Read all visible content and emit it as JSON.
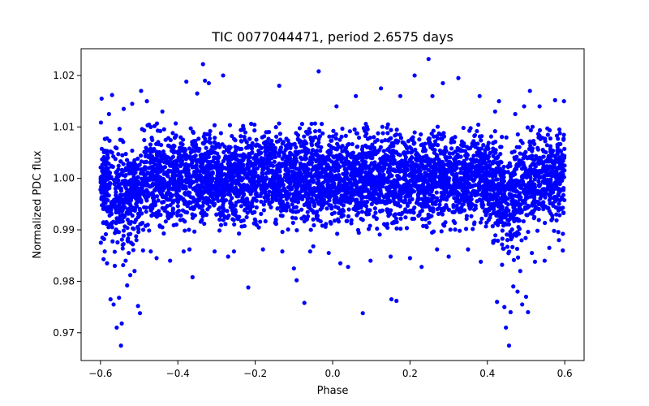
{
  "chart_data": {
    "type": "scatter",
    "title": "TIC 0077044471, period 2.6575 days",
    "xlabel": "Phase",
    "ylabel": "Normalized PDC flux",
    "xlim": [
      -0.65,
      0.65
    ],
    "ylim": [
      0.9646,
      1.0252
    ],
    "xticks": [
      -0.6,
      -0.4,
      -0.2,
      0.0,
      0.2,
      0.4,
      0.6
    ],
    "xtick_labels": [
      "−0.6",
      "−0.4",
      "−0.2",
      "0.0",
      "0.2",
      "0.4",
      "0.6"
    ],
    "yticks": [
      0.97,
      0.98,
      0.99,
      1.0,
      1.01,
      1.02
    ],
    "ytick_labels": [
      "0.97",
      "0.98",
      "0.99",
      "1.00",
      "1.01",
      "1.02"
    ],
    "grid": false,
    "legend": "none",
    "marker_color": "#0000ff",
    "series": [
      {
        "points": [
          [
            -0.599,
            0.9875
          ],
          [
            -0.597,
            1.0155
          ],
          [
            -0.592,
            0.9843
          ],
          [
            -0.589,
            0.9858
          ],
          [
            -0.583,
            0.9835
          ],
          [
            -0.578,
            1.0125
          ],
          [
            -0.574,
            0.9765
          ],
          [
            -0.57,
            1.0162
          ],
          [
            -0.566,
            0.9755
          ],
          [
            -0.563,
            0.983
          ],
          [
            -0.558,
            0.971
          ],
          [
            -0.552,
            0.9768
          ],
          [
            -0.547,
            0.9675
          ],
          [
            -0.545,
            0.9718
          ],
          [
            -0.54,
            1.0135
          ],
          [
            -0.535,
            0.984
          ],
          [
            -0.531,
            0.9792
          ],
          [
            -0.527,
            0.9855
          ],
          [
            -0.523,
            0.9812
          ],
          [
            -0.518,
            1.0145
          ],
          [
            -0.512,
            0.982
          ],
          [
            -0.507,
            0.988
          ],
          [
            -0.503,
            0.9752
          ],
          [
            -0.498,
            0.9738
          ],
          [
            -0.495,
            1.017
          ],
          [
            -0.49,
            0.986
          ],
          [
            -0.48,
            1.015
          ],
          [
            -0.47,
            0.9858
          ],
          [
            -0.455,
            0.9845
          ],
          [
            -0.44,
            1.013
          ],
          [
            -0.42,
            0.984
          ],
          [
            -0.385,
            0.9858
          ],
          [
            -0.378,
            1.0188
          ],
          [
            -0.37,
            0.9862
          ],
          [
            -0.362,
            0.9808
          ],
          [
            -0.35,
            1.0165
          ],
          [
            -0.335,
            1.0222
          ],
          [
            -0.33,
            1.019
          ],
          [
            -0.32,
            1.0185
          ],
          [
            -0.305,
            0.9858
          ],
          [
            -0.283,
            1.02
          ],
          [
            -0.27,
            0.9848
          ],
          [
            -0.255,
            0.9858
          ],
          [
            -0.218,
            0.9788
          ],
          [
            -0.18,
            0.9862
          ],
          [
            -0.138,
            1.018
          ],
          [
            -0.13,
            0.9858
          ],
          [
            -0.1,
            0.9825
          ],
          [
            -0.093,
            0.9802
          ],
          [
            -0.073,
            0.9758
          ],
          [
            -0.058,
            0.9858
          ],
          [
            -0.05,
            0.9868
          ],
          [
            -0.036,
            1.0208
          ],
          [
            -0.01,
            0.9855
          ],
          [
            0.01,
            1.014
          ],
          [
            0.02,
            0.9835
          ],
          [
            0.04,
            0.9828
          ],
          [
            0.06,
            1.016
          ],
          [
            0.078,
            0.9738
          ],
          [
            0.098,
            0.984
          ],
          [
            0.125,
            1.0175
          ],
          [
            0.15,
            0.9848
          ],
          [
            0.152,
            0.9765
          ],
          [
            0.165,
            0.9762
          ],
          [
            0.175,
            1.016
          ],
          [
            0.2,
            0.9845
          ],
          [
            0.212,
            1.02
          ],
          [
            0.23,
            0.9828
          ],
          [
            0.248,
            1.0232
          ],
          [
            0.258,
            1.016
          ],
          [
            0.27,
            0.9862
          ],
          [
            0.285,
            1.0185
          ],
          [
            0.3,
            0.9848
          ],
          [
            0.325,
            1.0195
          ],
          [
            0.35,
            0.9862
          ],
          [
            0.38,
            1.016
          ],
          [
            0.383,
            0.9838
          ],
          [
            0.42,
            1.013
          ],
          [
            0.425,
            0.976
          ],
          [
            0.43,
            1.015
          ],
          [
            0.438,
            0.9832
          ],
          [
            0.444,
            0.975
          ],
          [
            0.448,
            0.971
          ],
          [
            0.456,
            0.9675
          ],
          [
            0.46,
            0.974
          ],
          [
            0.467,
            0.979
          ],
          [
            0.472,
            1.0125
          ],
          [
            0.478,
            0.978
          ],
          [
            0.485,
            0.982
          ],
          [
            0.49,
            0.9755
          ],
          [
            0.495,
            1.014
          ],
          [
            0.5,
            0.977
          ],
          [
            0.505,
            0.974
          ],
          [
            0.51,
            1.017
          ],
          [
            0.515,
            0.9855
          ],
          [
            0.523,
            0.9838
          ],
          [
            0.535,
            1.014
          ],
          [
            0.548,
            0.984
          ],
          [
            0.56,
            0.9865
          ],
          [
            0.575,
            1.0152
          ],
          [
            0.585,
            0.988
          ],
          [
            0.595,
            0.986
          ],
          [
            0.598,
            1.015
          ]
        ]
      }
    ],
    "bulk_band": {
      "description": "dense cloud of points across the full phase range",
      "x_range": [
        -0.6,
        0.6
      ],
      "center": 1.0,
      "half_width": 0.0095,
      "dip_centers": [
        -0.545,
        0.455
      ],
      "dip_width": 0.04,
      "dip_depth": 0.008
    }
  }
}
